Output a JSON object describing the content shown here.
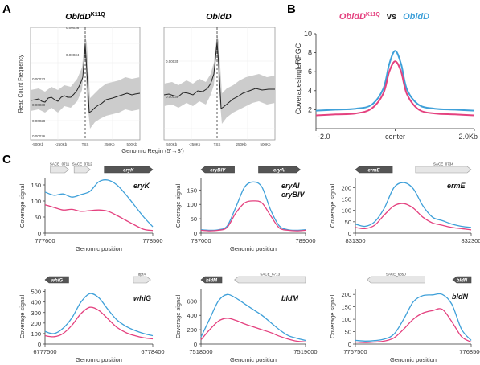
{
  "panels": {
    "A": "A",
    "B": "B",
    "C": "C"
  },
  "colors": {
    "oe": "#e4417f",
    "wt": "#3fa0d9",
    "ci": "#cccccc",
    "line": "#222222",
    "arrow_dark": "#555555",
    "arrow_light": "#e6e6e6"
  },
  "panelA": {
    "ylabel": "Read Count Frequency",
    "xlabel": "Genomic Regin (5'→3')",
    "xticks": [
      "-500Kb",
      "-250Kb",
      "TSS",
      "250Kb",
      "500Kb"
    ],
    "plots": [
      {
        "title": "OE bldD",
        "title_base": "ObldD",
        "title_sup": "K11Q",
        "yticks": [
          "0.00036",
          "0.00034",
          "0.00032",
          "0.00030",
          "0.00028",
          "0.00026"
        ]
      },
      {
        "title": "ObldD",
        "title_base": "ObldD",
        "title_sup": "",
        "yticks": [
          "0.00035",
          "0.00030"
        ]
      }
    ]
  },
  "panelB": {
    "title_left_base": "ObldD",
    "title_left_sup": "K11Q",
    "title_vs": "vs",
    "title_right": "ObldD",
    "ylabel": "CoveragesingleRPGC",
    "xticks": [
      "-2.0",
      "center",
      "2.0Kb"
    ],
    "yticks": [
      "2",
      "4",
      "6",
      "8",
      "10"
    ]
  },
  "chart_data": [
    {
      "type": "line",
      "id": "B-profile",
      "x": [
        -2.0,
        -1.5,
        -1.0,
        -0.6,
        -0.3,
        -0.15,
        0,
        0.15,
        0.3,
        0.6,
        1.0,
        1.5,
        2.0
      ],
      "ylim": [
        0,
        10
      ],
      "series": [
        {
          "color": "#3fa0d9",
          "values": [
            1.9,
            2.0,
            2.1,
            2.5,
            4.2,
            6.8,
            8.2,
            6.8,
            4.1,
            2.5,
            2.1,
            2.0,
            1.9
          ]
        },
        {
          "color": "#e4417f",
          "values": [
            1.4,
            1.5,
            1.6,
            2.1,
            3.7,
            6.0,
            7.1,
            6.0,
            3.6,
            2.0,
            1.6,
            1.5,
            1.4
          ]
        }
      ]
    },
    {
      "type": "line",
      "id": "C-eryK",
      "label": "eryK",
      "xlabel": "Genomic position",
      "ylabel": "Coverage signal",
      "xticks": [
        "777600",
        "778500"
      ],
      "yticks": [
        "0",
        "50",
        "100",
        "150"
      ],
      "ylim": [
        0,
        170
      ],
      "genes": [
        {
          "label": "SACE_0711",
          "x0": 0.05,
          "x1": 0.22,
          "dir": "right",
          "dark": false
        },
        {
          "label": "SACE_0712",
          "x0": 0.27,
          "x1": 0.42,
          "dir": "right",
          "dark": false
        },
        {
          "label": "eryK",
          "x0": 0.55,
          "x1": 1.0,
          "dir": "right",
          "dark": true
        }
      ],
      "series": [
        {
          "color": "#3fa0d9",
          "values": [
            128,
            118,
            122,
            112,
            120,
            130,
            160,
            165,
            150,
            120,
            85,
            50,
            20
          ]
        },
        {
          "color": "#e4417f",
          "values": [
            88,
            80,
            72,
            74,
            68,
            70,
            72,
            68,
            55,
            40,
            25,
            12,
            8
          ]
        }
      ]
    },
    {
      "type": "line",
      "id": "C-eryAI",
      "label": "eryAI",
      "label2": "eryBIV",
      "xlabel": "Genomic position",
      "ylabel": "Coverage signal",
      "xticks": [
        "787000",
        "789000"
      ],
      "yticks": [
        "0",
        "50",
        "100",
        "150"
      ],
      "ylim": [
        0,
        190
      ],
      "genes": [
        {
          "label": "eryBIV",
          "x0": 0.0,
          "x1": 0.32,
          "dir": "left",
          "dark": true
        },
        {
          "label": "eryAI",
          "x0": 0.55,
          "x1": 0.95,
          "dir": "right",
          "dark": true
        }
      ],
      "series": [
        {
          "color": "#3fa0d9",
          "values": [
            12,
            10,
            12,
            25,
            90,
            160,
            178,
            160,
            80,
            25,
            12,
            10,
            12
          ]
        },
        {
          "color": "#e4417f",
          "values": [
            10,
            8,
            10,
            20,
            70,
            105,
            112,
            105,
            60,
            18,
            10,
            8,
            10
          ]
        }
      ]
    },
    {
      "type": "line",
      "id": "C-ermE",
      "label": "ermE",
      "xlabel": "",
      "ylabel": "Coverage signal",
      "xticks": [
        "831300",
        "832300"
      ],
      "yticks": [
        "0",
        "50",
        "100",
        "150",
        "200"
      ],
      "ylim": [
        0,
        240
      ],
      "genes": [
        {
          "label": "ermE",
          "x0": 0.0,
          "x1": 0.32,
          "dir": "left",
          "dark": true
        },
        {
          "label": "SACE_0734",
          "x0": 0.52,
          "x1": 1.0,
          "dir": "right",
          "dark": false
        }
      ],
      "series": [
        {
          "color": "#3fa0d9",
          "values": [
            40,
            30,
            50,
            110,
            200,
            222,
            195,
            120,
            70,
            55,
            40,
            30,
            25
          ]
        },
        {
          "color": "#e4417f",
          "values": [
            25,
            20,
            35,
            80,
            120,
            130,
            110,
            70,
            45,
            35,
            25,
            20,
            15
          ]
        }
      ]
    },
    {
      "type": "line",
      "id": "C-whiG",
      "label": "whiG",
      "xlabel": "Genomic position",
      "ylabel": "Coverage signal",
      "xticks": [
        "6777500",
        "6778400"
      ],
      "yticks": [
        "0",
        "100",
        "200",
        "300",
        "400",
        "500"
      ],
      "ylim": [
        0,
        520
      ],
      "genes": [
        {
          "label": "whiG",
          "x0": 0.0,
          "x1": 0.22,
          "dir": "left",
          "dark": true
        },
        {
          "label": "dprA",
          "x0": 0.82,
          "x1": 0.98,
          "dir": "right",
          "dark": false
        }
      ],
      "series": [
        {
          "color": "#3fa0d9",
          "values": [
            120,
            100,
            150,
            250,
            400,
            480,
            440,
            330,
            230,
            170,
            130,
            100,
            80
          ]
        },
        {
          "color": "#e4417f",
          "values": [
            80,
            70,
            100,
            180,
            290,
            350,
            320,
            240,
            160,
            110,
            80,
            60,
            50
          ]
        }
      ]
    },
    {
      "type": "line",
      "id": "C-bldM",
      "label": "bldM",
      "xlabel": "Genomic position",
      "ylabel": "Coverage signal",
      "xticks": [
        "7518000",
        "7519000"
      ],
      "yticks": [
        "0",
        "200",
        "400",
        "600"
      ],
      "ylim": [
        0,
        760
      ],
      "genes": [
        {
          "label": "bldM",
          "x0": 0.0,
          "x1": 0.2,
          "dir": "left",
          "dark": true
        },
        {
          "label": "SACE_6713",
          "x0": 0.32,
          "x1": 1.0,
          "dir": "left",
          "dark": false
        }
      ],
      "series": [
        {
          "color": "#3fa0d9",
          "values": [
            100,
            350,
            600,
            690,
            640,
            560,
            480,
            400,
            300,
            200,
            120,
            80,
            50
          ]
        },
        {
          "color": "#e4417f",
          "values": [
            60,
            200,
            320,
            360,
            330,
            280,
            240,
            200,
            160,
            110,
            70,
            40,
            30
          ]
        }
      ]
    },
    {
      "type": "line",
      "id": "C-bldN",
      "label": "bldN",
      "xlabel": "Genomic position",
      "ylabel": "Coverage signal",
      "xticks": [
        "7767500",
        "7768500"
      ],
      "yticks": [
        "0",
        "50",
        "100",
        "150",
        "200"
      ],
      "ylim": [
        0,
        220
      ],
      "genes": [
        {
          "label": "SACE_6850",
          "x0": 0.1,
          "x1": 0.6,
          "dir": "left",
          "dark": false
        },
        {
          "label": "bldN",
          "x0": 0.84,
          "x1": 1.0,
          "dir": "left",
          "dark": true
        }
      ],
      "series": [
        {
          "color": "#3fa0d9",
          "values": [
            15,
            12,
            14,
            20,
            40,
            100,
            170,
            195,
            198,
            200,
            160,
            60,
            15
          ]
        },
        {
          "color": "#e4417f",
          "values": [
            8,
            6,
            8,
            12,
            25,
            60,
            100,
            125,
            135,
            140,
            90,
            30,
            8
          ]
        }
      ]
    }
  ]
}
